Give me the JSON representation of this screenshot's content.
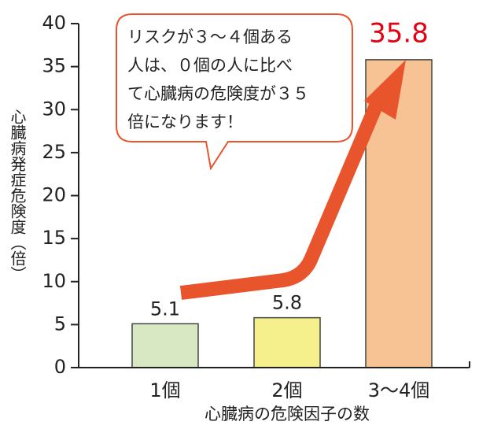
{
  "chart_data": {
    "type": "bar",
    "categories": [
      "1個",
      "2個",
      "3〜4個"
    ],
    "values": [
      5.1,
      5.8,
      35.8
    ],
    "colors": [
      "#d8e8c2",
      "#f6f08c",
      "#f7c294"
    ],
    "highlight_color": "#e50012",
    "ylim": [
      0,
      40
    ],
    "yticks": [
      0,
      5,
      10,
      15,
      20,
      25,
      30,
      35,
      40
    ],
    "ylabel": "心臓病発症危険度（倍）",
    "xlabel": "心臓病の危険因子の数",
    "annotation": [
      "リスクが３〜４個ある",
      "人は、０個の人に比べ",
      "て心臓病の危険度が３５",
      "倍になります！"
    ],
    "grid": false
  }
}
